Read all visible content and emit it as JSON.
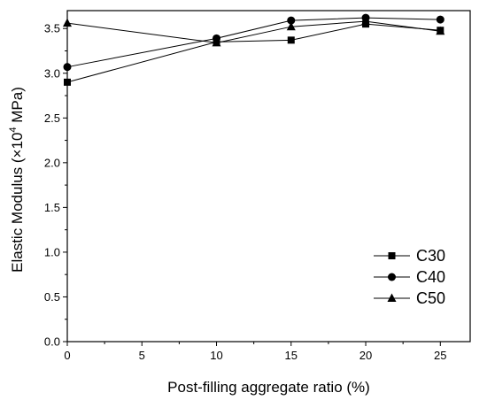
{
  "chart_data": {
    "type": "line",
    "title": "",
    "xlabel": "Post-filling aggregate ratio (%)",
    "ylabel_parts": [
      "Elastic Modulus (×10",
      "4",
      " MPa)"
    ],
    "xlim": [
      0,
      27
    ],
    "ylim": [
      0.0,
      3.7
    ],
    "x_ticks": [
      0,
      5,
      10,
      15,
      20,
      25
    ],
    "y_ticks": [
      0.0,
      0.5,
      1.0,
      1.5,
      2.0,
      2.5,
      3.0,
      3.5
    ],
    "x_tick_labels": [
      "0",
      "5",
      "10",
      "15",
      "20",
      "25"
    ],
    "y_tick_labels": [
      "0.0",
      "0.5",
      "1.0",
      "1.5",
      "2.0",
      "2.5",
      "3.0",
      "3.5"
    ],
    "x": [
      0,
      10,
      15,
      20,
      25
    ],
    "series": [
      {
        "name": "C30",
        "marker": "square",
        "values": [
          2.9,
          3.35,
          3.37,
          3.55,
          3.48
        ]
      },
      {
        "name": "C40",
        "marker": "circle",
        "values": [
          3.07,
          3.39,
          3.59,
          3.62,
          3.6
        ]
      },
      {
        "name": "C50",
        "marker": "triangle",
        "values": [
          3.56,
          3.34,
          3.52,
          3.58,
          3.47
        ]
      }
    ],
    "legend_position": "bottom-right",
    "grid": false,
    "line_color": "#000000"
  }
}
